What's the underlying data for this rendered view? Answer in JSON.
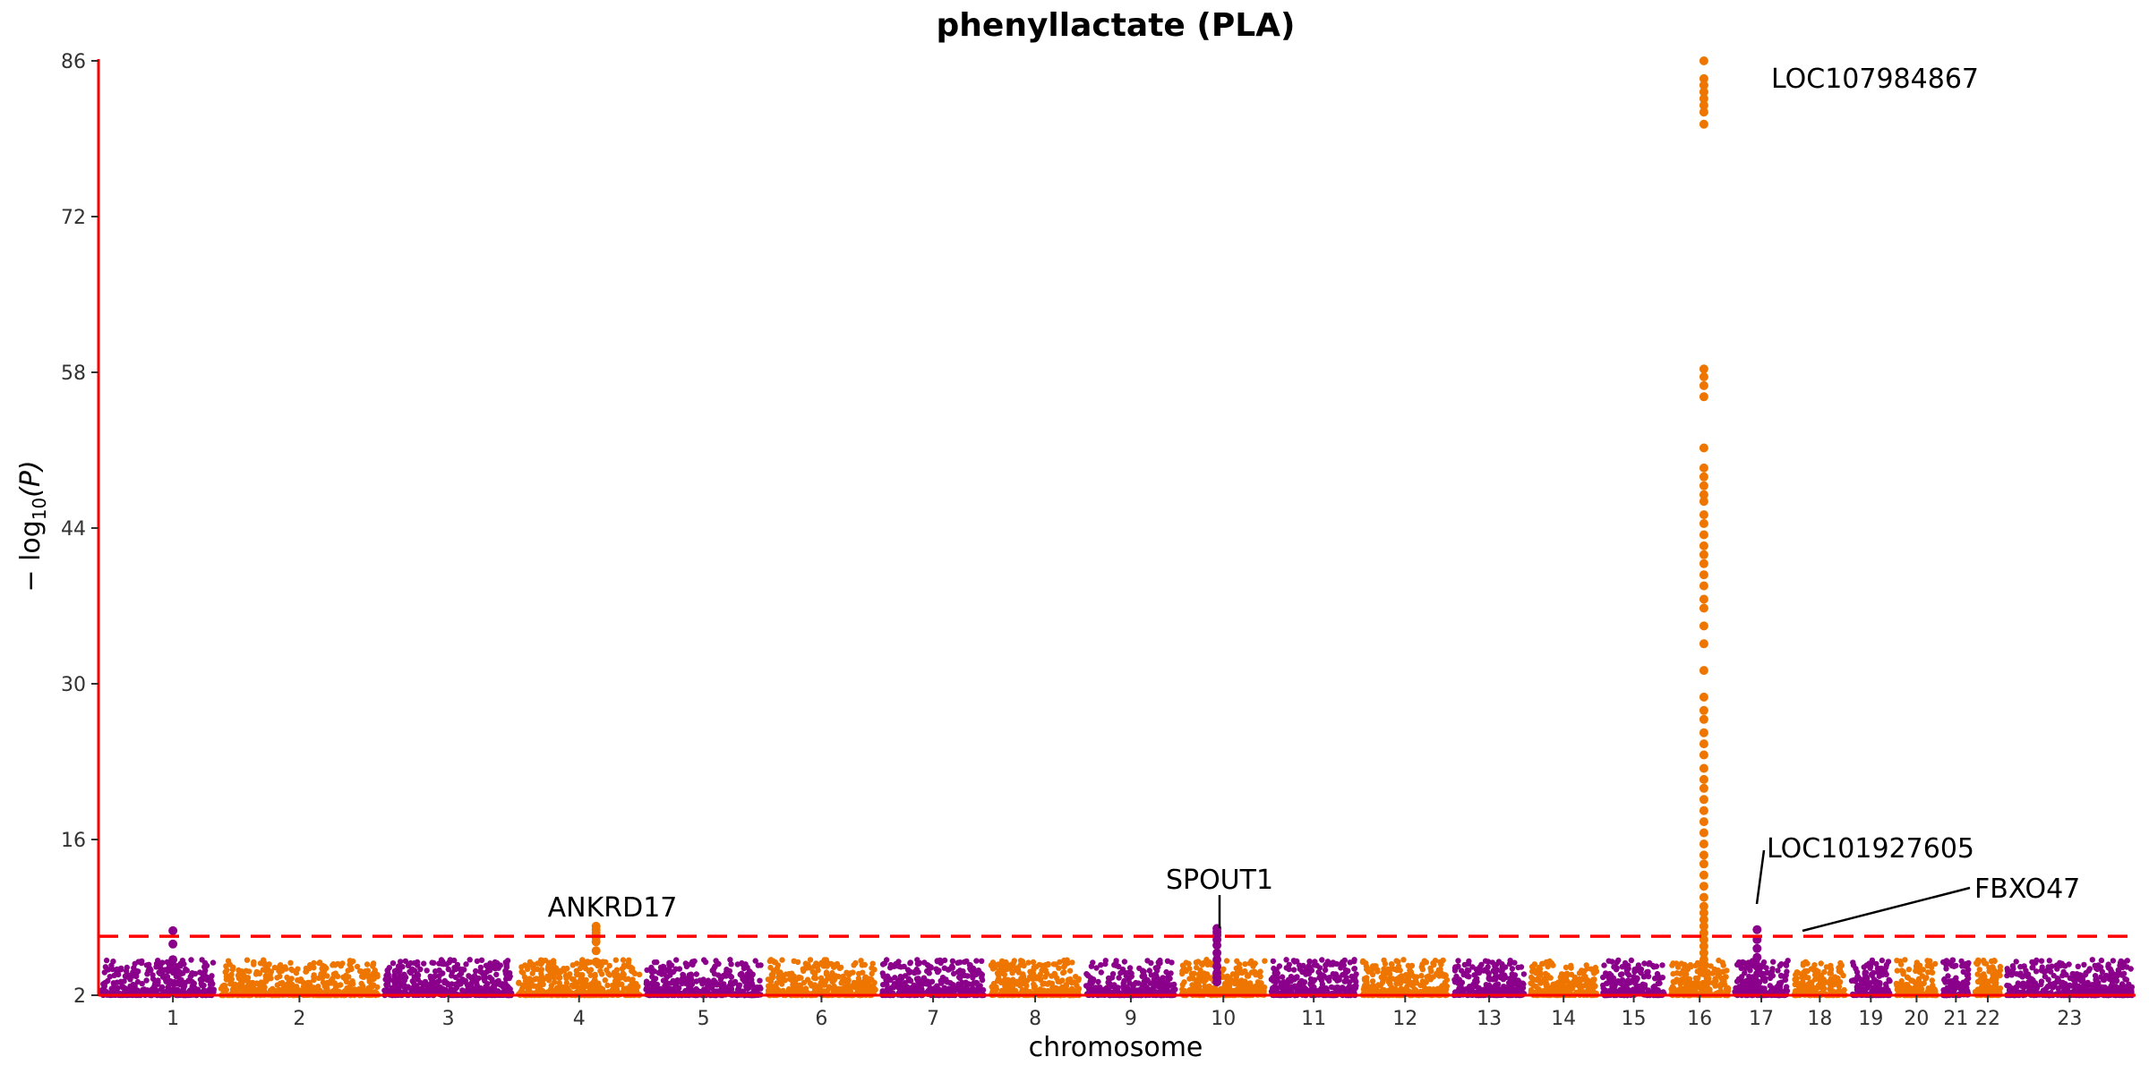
{
  "chart_data": {
    "type": "scatter",
    "title": "phenyllactate (PLA)",
    "xlabel": "chromosome",
    "ylabel_prefix": "− log",
    "ylabel_sub": "10",
    "ylabel_var": "(P)",
    "ylim": [
      2,
      86
    ],
    "yticks": [
      2,
      16,
      30,
      44,
      58,
      72,
      86
    ],
    "significance_threshold": 7.3,
    "colors": {
      "odd_chromosome": "#8B008B",
      "even_chromosome": "#EE7600",
      "threshold_line": "#FF0000",
      "axis": "#FF0000"
    },
    "chromosomes": [
      {
        "label": "1",
        "start": 0,
        "end": 5.6
      },
      {
        "label": "2",
        "start": 5.6,
        "end": 13.3
      },
      {
        "label": "3",
        "start": 13.3,
        "end": 19.6
      },
      {
        "label": "4",
        "start": 19.6,
        "end": 25.6
      },
      {
        "label": "5",
        "start": 25.6,
        "end": 31.3
      },
      {
        "label": "6",
        "start": 31.3,
        "end": 36.7
      },
      {
        "label": "7",
        "start": 36.7,
        "end": 41.8
      },
      {
        "label": "8",
        "start": 41.8,
        "end": 46.3
      },
      {
        "label": "9",
        "start": 46.3,
        "end": 50.8
      },
      {
        "label": "10",
        "start": 50.8,
        "end": 55.0
      },
      {
        "label": "11",
        "start": 55.0,
        "end": 59.3
      },
      {
        "label": "12",
        "start": 59.3,
        "end": 63.6
      },
      {
        "label": "13",
        "start": 63.6,
        "end": 67.2
      },
      {
        "label": "14",
        "start": 67.2,
        "end": 70.6
      },
      {
        "label": "15",
        "start": 70.6,
        "end": 73.8
      },
      {
        "label": "16",
        "start": 73.8,
        "end": 76.8
      },
      {
        "label": "17",
        "start": 76.8,
        "end": 79.6
      },
      {
        "label": "18",
        "start": 79.6,
        "end": 82.3
      },
      {
        "label": "19",
        "start": 82.3,
        "end": 84.4
      },
      {
        "label": "20",
        "start": 84.4,
        "end": 86.6
      },
      {
        "label": "21",
        "start": 86.6,
        "end": 88.1
      },
      {
        "label": "22",
        "start": 88.1,
        "end": 89.6
      },
      {
        "label": "23",
        "start": 89.6,
        "end": 95.8
      }
    ],
    "peaks": [
      {
        "x": 3.5,
        "ys": [
          7.8,
          6.6,
          5.2,
          4.6
        ],
        "color": "odd"
      },
      {
        "x": 23.4,
        "ys": [
          8.2,
          7.9,
          7.6,
          7.2,
          6.8,
          6.0,
          5.0
        ],
        "color": "even"
      },
      {
        "x": 52.6,
        "ys": [
          8.0,
          7.7,
          7.4,
          7.0,
          6.5,
          5.8,
          5.2,
          4.6,
          4.0,
          3.6,
          3.2
        ],
        "color": "odd"
      },
      {
        "x": 75.5,
        "ys": [
          86,
          84.4,
          83.8,
          83.2,
          82.6,
          82.0,
          81.4,
          80.3,
          58.3,
          57.6,
          56.8,
          55.8,
          51.2,
          49.4,
          48.6,
          47.8,
          47.0,
          46.4,
          45.2,
          44.4,
          43.4,
          42.4,
          41.6,
          40.8,
          39.8,
          38.8,
          37.6,
          36.8,
          35.2,
          33.6,
          31.2,
          28.8,
          27.6,
          26.8,
          25.6,
          24.6,
          23.6,
          22.4,
          21.4,
          20.6,
          19.6,
          18.6,
          17.6,
          16.6,
          15.6,
          14.6,
          13.8,
          12.8,
          11.8,
          10.8,
          10.0,
          9.4,
          8.8,
          8.2,
          7.6,
          7.0,
          6.4,
          5.8,
          5.2,
          4.6,
          4.0
        ],
        "color": "even"
      },
      {
        "x": 78.0,
        "ys": [
          7.9,
          7.0,
          6.2,
          5.4,
          4.6
        ],
        "color": "odd"
      }
    ],
    "annotations": [
      {
        "text": "LOC107984867",
        "x": 75.5,
        "y": 84.4
      },
      {
        "text": "ANKRD17",
        "x": 23.4,
        "y": 8.2
      },
      {
        "text": "SPOUT1",
        "x": 52.6,
        "y": 8.0
      },
      {
        "text": "LOC101927605",
        "x": 75.5,
        "y": 10.0
      },
      {
        "text": "FBXO47",
        "x": 78.0,
        "y": 7.9
      }
    ]
  }
}
